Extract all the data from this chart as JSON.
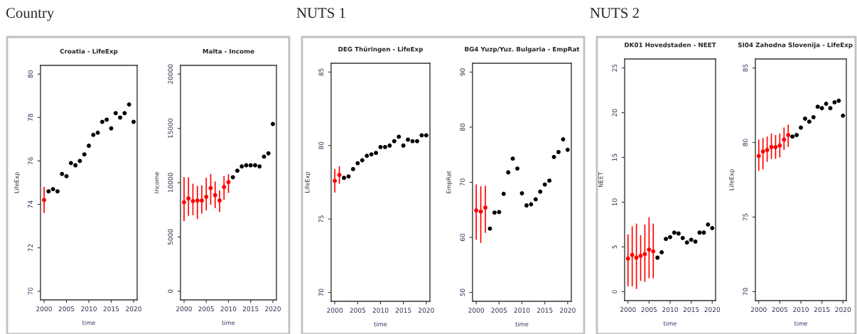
{
  "chart_data": [
    {
      "type": "scatter",
      "title": "Croatia - LifeExp",
      "xlabel": "time",
      "ylabel": "LifeExp",
      "annotations": [
        "Country"
      ],
      "xlim": [
        1999.2,
        2020.8
      ],
      "xticks": [
        2000,
        2005,
        2010,
        2015,
        2020
      ],
      "ylim": [
        69.6,
        80.4
      ],
      "yticks": [
        70,
        72,
        74,
        76,
        78,
        80
      ],
      "grid": false,
      "marker": "circle",
      "series": [
        {
          "color": "#ff0000",
          "x": [
            2000
          ],
          "values": [
            74.2
          ],
          "errors": [
            [
              73.6,
              74.8
            ]
          ]
        },
        {
          "color": "#000000",
          "x": [
            2001,
            2002,
            2003,
            2004,
            2005,
            2006,
            2007,
            2008,
            2009,
            2010,
            2011,
            2012,
            2013,
            2014,
            2015,
            2016,
            2017,
            2018,
            2019,
            2020
          ],
          "values": [
            74.6,
            74.7,
            74.6,
            75.4,
            75.3,
            75.9,
            75.8,
            76.0,
            76.3,
            76.7,
            77.2,
            77.3,
            77.8,
            77.9,
            77.5,
            78.2,
            78.0,
            78.2,
            78.6,
            77.8
          ]
        }
      ]
    },
    {
      "type": "scatter",
      "title": "Malta - Income",
      "xlabel": "time",
      "ylabel": "Income",
      "xlim": [
        1999.2,
        2020.8
      ],
      "xticks": [
        2000,
        2005,
        2010,
        2015,
        2020
      ],
      "ylim": [
        -800,
        20800
      ],
      "yticks": [
        0,
        5000,
        10000,
        15000,
        20000
      ],
      "grid": false,
      "marker": "circle",
      "series": [
        {
          "color": "#ff0000",
          "x": [
            2000,
            2001,
            2002,
            2003,
            2004,
            2005,
            2006,
            2007,
            2008,
            2009,
            2010
          ],
          "values": [
            8200,
            8550,
            8300,
            8350,
            8350,
            8700,
            9500,
            8850,
            8350,
            9600,
            10050
          ],
          "errors": [
            [
              6450,
              10500
            ],
            [
              6950,
              10500
            ],
            [
              7000,
              9900
            ],
            [
              6650,
              9700
            ],
            [
              7150,
              9750
            ],
            [
              7450,
              10450
            ],
            [
              7950,
              10800
            ],
            [
              7650,
              10100
            ],
            [
              7300,
              9300
            ],
            [
              8400,
              10600
            ],
            [
              9050,
              10800
            ]
          ]
        },
        {
          "color": "#000000",
          "x": [
            2011,
            2012,
            2013,
            2014,
            2015,
            2016,
            2017,
            2018,
            2019,
            2020
          ],
          "values": [
            10500,
            11100,
            11500,
            11600,
            11600,
            11600,
            11500,
            12400,
            12700,
            15400
          ]
        }
      ]
    },
    {
      "type": "scatter",
      "title": "DEG Thüringen - LifeExp",
      "xlabel": "time",
      "ylabel": "LifeExp",
      "annotations": [
        "NUTS 1"
      ],
      "xlim": [
        1999.2,
        2020.8
      ],
      "xticks": [
        2000,
        2005,
        2010,
        2015,
        2020
      ],
      "ylim": [
        69.4,
        85.6
      ],
      "yticks": [
        70,
        75,
        80,
        85
      ],
      "grid": false,
      "marker": "circle",
      "series": [
        {
          "color": "#ff0000",
          "x": [
            2000,
            2001
          ],
          "values": [
            77.6,
            78.0
          ],
          "errors": [
            [
              76.8,
              78.4
            ],
            [
              77.4,
              78.6
            ]
          ]
        },
        {
          "color": "#000000",
          "x": [
            2002,
            2003,
            2004,
            2005,
            2006,
            2007,
            2008,
            2009,
            2010,
            2011,
            2012,
            2013,
            2014,
            2015,
            2016,
            2017,
            2018,
            2019,
            2020
          ],
          "values": [
            77.8,
            77.9,
            78.4,
            78.8,
            79.0,
            79.3,
            79.4,
            79.5,
            79.9,
            79.9,
            80.0,
            80.3,
            80.6,
            80.0,
            80.4,
            80.3,
            80.3,
            80.7,
            80.7
          ]
        }
      ]
    },
    {
      "type": "scatter",
      "title": "BG4 Yuzp/Yuz. Bulgaria - EmpRat",
      "xlabel": "time",
      "ylabel": "EmpRat",
      "xlim": [
        1999.2,
        2020.8
      ],
      "xticks": [
        2000,
        2005,
        2010,
        2015,
        2020
      ],
      "ylim": [
        48.4,
        91.6
      ],
      "yticks": [
        50,
        60,
        70,
        80,
        90
      ],
      "grid": false,
      "marker": "circle",
      "series": [
        {
          "color": "#ff0000",
          "x": [
            2000,
            2001,
            2002
          ],
          "values": [
            64.9,
            64.7,
            65.4
          ],
          "errors": [
            [
              59.6,
              69.6
            ],
            [
              59.0,
              69.3
            ],
            [
              60.8,
              69.4
            ]
          ]
        },
        {
          "color": "#000000",
          "x": [
            2003,
            2004,
            2005,
            2006,
            2007,
            2008,
            2009,
            2010,
            2011,
            2012,
            2013,
            2014,
            2015,
            2016,
            2017,
            2018,
            2019,
            2020
          ],
          "values": [
            61.6,
            64.5,
            64.6,
            67.9,
            71.8,
            74.3,
            72.5,
            68.0,
            65.8,
            66.0,
            66.9,
            68.3,
            69.6,
            70.3,
            74.6,
            75.5,
            77.8,
            75.9
          ]
        }
      ]
    },
    {
      "type": "scatter",
      "title": "DK01 Hovedstaden - NEET",
      "xlabel": "time",
      "ylabel": "NEET",
      "annotations": [
        "NUTS 2"
      ],
      "xlim": [
        1999.2,
        2020.8
      ],
      "xticks": [
        2000,
        2005,
        2010,
        2015,
        2020
      ],
      "ylim": [
        -1,
        26
      ],
      "yticks": [
        0,
        5,
        10,
        15,
        20,
        25
      ],
      "grid": false,
      "marker": "circle",
      "series": [
        {
          "color": "#ff0000",
          "x": [
            2000,
            2001,
            2002,
            2003,
            2004,
            2005,
            2006
          ],
          "values": [
            3.7,
            4.1,
            3.8,
            4.0,
            4.2,
            4.7,
            4.5
          ],
          "errors": [
            [
              0.6,
              6.4
            ],
            [
              0.6,
              7.3
            ],
            [
              0.3,
              7.6
            ],
            [
              1.2,
              6.3
            ],
            [
              1.1,
              7.5
            ],
            [
              1.5,
              8.3
            ],
            [
              1.5,
              7.6
            ]
          ]
        },
        {
          "color": "#000000",
          "x": [
            2007,
            2008,
            2009,
            2010,
            2011,
            2012,
            2013,
            2014,
            2015,
            2016,
            2017,
            2018,
            2019,
            2020
          ],
          "values": [
            3.8,
            4.4,
            5.9,
            6.1,
            6.6,
            6.5,
            6.0,
            5.5,
            5.8,
            5.6,
            6.6,
            6.6,
            7.5,
            7.1
          ]
        }
      ]
    },
    {
      "type": "scatter",
      "title": "SI04 Zahodna Slovenija - LifeExp",
      "xlabel": "time",
      "ylabel": "LifeExp",
      "xlim": [
        1999.2,
        2020.8
      ],
      "xticks": [
        2000,
        2005,
        2010,
        2015,
        2020
      ],
      "ylim": [
        69.4,
        85.6
      ],
      "yticks": [
        70,
        75,
        80,
        85
      ],
      "grid": false,
      "marker": "circle",
      "series": [
        {
          "color": "#ff0000",
          "x": [
            2000,
            2001,
            2002,
            2003,
            2004,
            2005,
            2006,
            2007
          ],
          "values": [
            79.1,
            79.4,
            79.5,
            79.7,
            79.7,
            79.8,
            80.2,
            80.5
          ],
          "errors": [
            [
              78.1,
              80.2
            ],
            [
              78.2,
              80.3
            ],
            [
              78.7,
              80.4
            ],
            [
              78.9,
              80.6
            ],
            [
              78.9,
              80.5
            ],
            [
              79.0,
              80.6
            ],
            [
              79.5,
              81.0
            ],
            [
              79.7,
              81.2
            ]
          ]
        },
        {
          "color": "#000000",
          "x": [
            2008,
            2009,
            2010,
            2011,
            2012,
            2013,
            2014,
            2015,
            2016,
            2017,
            2018,
            2019,
            2020
          ],
          "values": [
            80.4,
            80.5,
            81.0,
            81.6,
            81.4,
            81.7,
            82.4,
            82.3,
            82.6,
            82.3,
            82.7,
            82.8,
            81.8
          ]
        }
      ]
    }
  ]
}
